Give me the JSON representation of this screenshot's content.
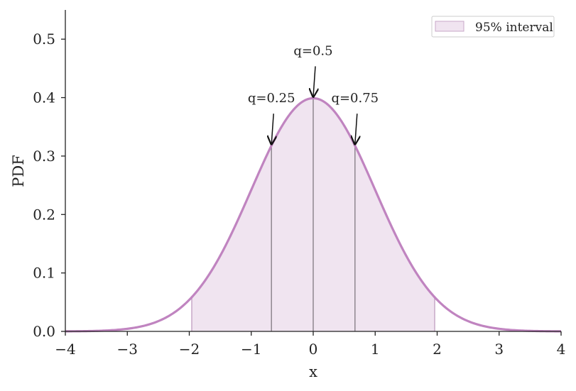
{
  "chart_data": {
    "type": "area",
    "xlabel": "x",
    "ylabel": "PDF",
    "xlim": [
      -4,
      4
    ],
    "ylim": [
      0,
      0.55
    ],
    "xticks": [
      -4,
      -3,
      -2,
      -1,
      0,
      1,
      2,
      3,
      4
    ],
    "xtick_labels": [
      "−4",
      "−3",
      "−2",
      "−1",
      "0",
      "1",
      "2",
      "3",
      "4"
    ],
    "yticks": [
      0.0,
      0.1,
      0.2,
      0.3,
      0.4,
      0.5
    ],
    "ytick_labels": [
      "0.0",
      "0.1",
      "0.2",
      "0.3",
      "0.4",
      "0.5"
    ],
    "grid": false,
    "distribution": "standard normal",
    "curve": {
      "x": [
        -4.0,
        -3.5,
        -3.0,
        -2.5,
        -2.0,
        -1.5,
        -1.0,
        -0.5,
        0.0,
        0.5,
        1.0,
        1.5,
        2.0,
        2.5,
        3.0,
        3.5,
        4.0
      ],
      "y": [
        0.0001,
        0.0009,
        0.0044,
        0.0175,
        0.054,
        0.1295,
        0.242,
        0.3521,
        0.3989,
        0.3521,
        0.242,
        0.1295,
        0.054,
        0.0175,
        0.0044,
        0.0009,
        0.0001
      ]
    },
    "interval": {
      "label": "95% interval",
      "lower": -1.96,
      "upper": 1.96
    },
    "quantiles": [
      {
        "label": "q=0.25",
        "x": -0.674,
        "y": 0.318
      },
      {
        "label": "q=0.5",
        "x": 0.0,
        "y": 0.399
      },
      {
        "label": "q=0.75",
        "x": 0.674,
        "y": 0.318
      }
    ],
    "legend": {
      "position": "top-right",
      "entries": [
        "95% interval"
      ]
    },
    "colors": {
      "line": "#c084c0",
      "fill": "#f0e4f0",
      "interval_edge": "#c8a8c8",
      "quantile_line": "#888088",
      "axis": "#222222"
    }
  }
}
